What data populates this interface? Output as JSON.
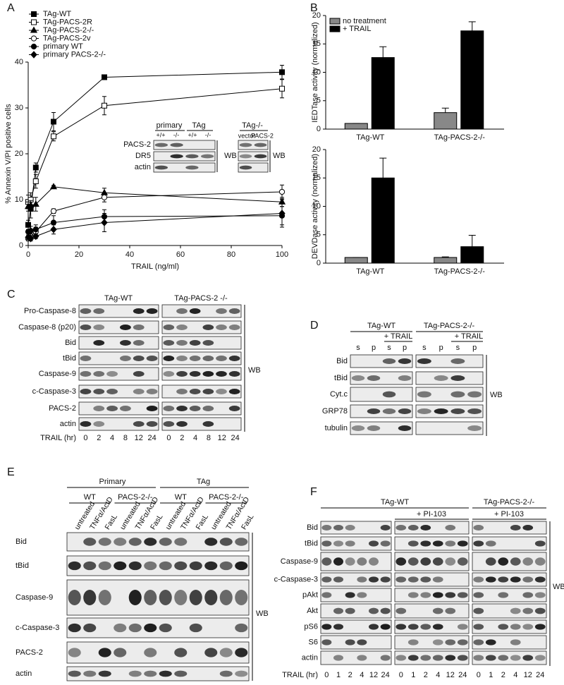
{
  "panel_labels": [
    "A",
    "B",
    "C",
    "D",
    "E",
    "F"
  ],
  "chart_data": [
    {
      "type": "line",
      "ylabel": "% Annexin V/PI positive cells",
      "xlabel": "TRAIL (ng/ml)",
      "x": [
        0,
        1,
        3,
        10,
        30,
        100
      ],
      "xlim": [
        0,
        100
      ],
      "ylim": [
        0,
        40
      ],
      "xticks": [
        0,
        20,
        40,
        60,
        80,
        100
      ],
      "yticks": [
        0,
        10,
        20,
        30,
        40
      ],
      "color": "#000000",
      "legend": "upper left",
      "series": [
        {
          "name": "TAg-WT",
          "marker": "filled-square",
          "values": [
            4.5,
            8,
            17,
            27,
            36.7,
            37.8
          ],
          "errors": [
            1,
            2,
            1,
            2,
            0.5,
            1.5
          ]
        },
        {
          "name": "TAg-PACS-2R",
          "marker": "open-square",
          "values": [
            9.5,
            10,
            14,
            23.8,
            30.5,
            34.2
          ],
          "errors": [
            1.5,
            1.5,
            1.5,
            1,
            2,
            2
          ]
        },
        {
          "name": "TAg-PACS-2-/-",
          "marker": "filled-triangle",
          "values": [
            8.5,
            8.8,
            9,
            12.8,
            11.5,
            9.5
          ],
          "errors": [
            1,
            1,
            1.5,
            0.3,
            1,
            1
          ]
        },
        {
          "name": "TAg-PACS-2v",
          "marker": "open-circle",
          "values": [
            1.5,
            2,
            3,
            7.5,
            10.5,
            11.7
          ],
          "errors": [
            0.5,
            0.5,
            1,
            0.5,
            1,
            1.5
          ]
        },
        {
          "name": "primary WT",
          "marker": "filled-circle",
          "values": [
            3,
            3.2,
            3.5,
            5,
            6.3,
            6.5
          ],
          "errors": [
            1,
            1,
            1,
            1.5,
            1.5,
            2
          ]
        },
        {
          "name": "primary PACS-2-/-",
          "marker": "filled-diamond",
          "values": [
            1.8,
            1.5,
            2,
            3.5,
            5,
            7
          ],
          "errors": [
            0.5,
            0.5,
            0.5,
            1,
            2,
            3
          ]
        }
      ]
    },
    {
      "type": "bar",
      "ylabel": "IEDTase activity (normalized)",
      "categories": [
        "TAg-WT",
        "TAg-PACS-2-/-"
      ],
      "ylim": [
        0,
        20
      ],
      "yticks": [
        0,
        5,
        10,
        15,
        20
      ],
      "legend": "upper left",
      "series": [
        {
          "name": "no treatment",
          "color": "#888888",
          "values": [
            1,
            2.9
          ],
          "errors": [
            0,
            0.8
          ]
        },
        {
          "name": "+ TRAIL",
          "color": "#000000",
          "values": [
            12.6,
            17.3
          ],
          "errors": [
            1.9,
            1.6
          ]
        }
      ]
    },
    {
      "type": "bar",
      "ylabel": "DEVDase activity (normalized)",
      "categories": [
        "TAg-WT",
        "TAg-PACS-2-/-"
      ],
      "ylim": [
        0,
        20
      ],
      "yticks": [
        0,
        5,
        10,
        15,
        20
      ],
      "series": [
        {
          "color": "#888888",
          "values": [
            1,
            1
          ],
          "errors": [
            0,
            0.1
          ]
        },
        {
          "color": "#000000",
          "values": [
            15,
            2.9
          ],
          "errors": [
            3.5,
            2
          ]
        }
      ]
    }
  ],
  "blots": {
    "A_inset": {
      "groups": [
        "primary",
        "TAg",
        "TAg-/-"
      ],
      "genotypes": [
        "+/+",
        "-/-",
        "+/+",
        "-/-"
      ],
      "constructs": [
        "vector",
        "PACS-2"
      ],
      "rows": [
        "PACS-2",
        "DR5",
        "actin"
      ],
      "wb": [
        "WB",
        "WB"
      ]
    },
    "C": {
      "groups": [
        "TAg-WT",
        "TAg-PACS-2 -/-"
      ],
      "rows": [
        "Pro-Caspase-8",
        "Caspase-8 (p20)",
        "Bid",
        "tBid",
        "Caspase-9",
        "c-Caspase-3",
        "PACS-2",
        "actin"
      ],
      "lane_title": "TRAIL (hr)",
      "lanes": [
        [
          "0",
          "2",
          "4",
          "8",
          "12",
          "24"
        ],
        [
          "0",
          "2",
          "4",
          "8",
          "12",
          "24"
        ]
      ],
      "wb": "WB"
    },
    "D": {
      "groups": [
        "TAg-WT",
        "TAg-PACS-2-/-"
      ],
      "treatments": [
        "+ TRAIL",
        "+ TRAIL"
      ],
      "fractions": [
        "s",
        "p",
        "s",
        "p",
        "s",
        "p",
        "s",
        "p"
      ],
      "rows": [
        "Bid",
        "tBid",
        "Cyt.c",
        "GRP78",
        "tubulin"
      ],
      "wb": "WB"
    },
    "E": {
      "sources": [
        "Primary",
        "TAg"
      ],
      "genotypes": [
        "WT",
        "PACS-2-/-",
        "WT",
        "PACS-2-/-"
      ],
      "treatments": [
        "untreated",
        "TNFα/ActD",
        "FasL",
        "untreated",
        "TNFα/ActD",
        "FasL",
        "untreated",
        "TNFα/ActD",
        "FasL",
        "untreated",
        "TNFα/ActD",
        "FasL"
      ],
      "rows": [
        "Bid",
        "tBid",
        "Caspase-9",
        "c-Caspase-3",
        "PACS-2",
        "actin"
      ],
      "wb": "WB"
    },
    "F": {
      "groups": [
        "TAg-WT",
        "TAg-PACS-2-/-"
      ],
      "treatments": [
        "+ PI-103",
        "+ PI-103"
      ],
      "rows": [
        "Bid",
        "tBid",
        "Caspase-9",
        "c-Caspase-3",
        "pAkt",
        "Akt",
        "pS6",
        "S6",
        "actin"
      ],
      "lane_title": "TRAIL (hr)",
      "lanes": [
        [
          "0",
          "1",
          "2",
          "4",
          "12",
          "24"
        ],
        [
          "0",
          "1",
          "2",
          "4",
          "12",
          "24"
        ],
        [
          "0",
          "1",
          "2",
          "4",
          "12",
          "24"
        ]
      ],
      "wb": "WB"
    }
  }
}
